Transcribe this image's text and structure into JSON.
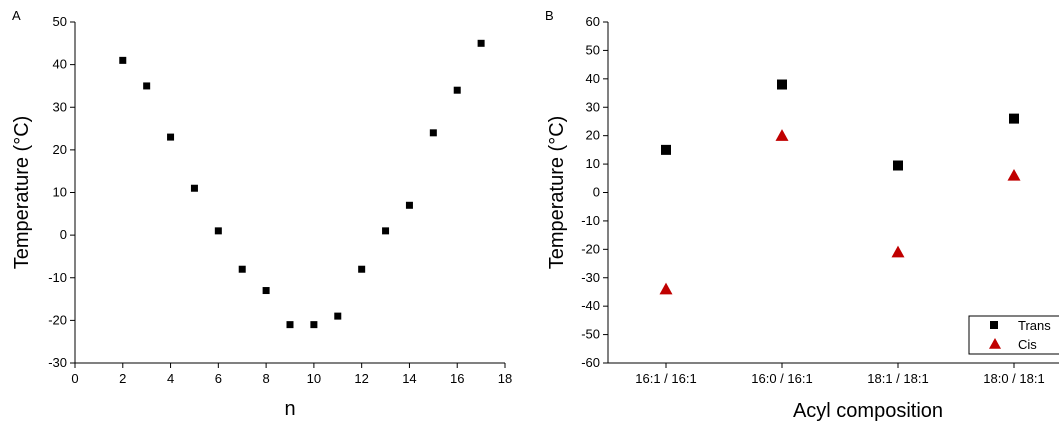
{
  "chart_data": [
    {
      "panel": "A",
      "type": "scatter",
      "xlabel": "n",
      "ylabel": "Temperature (°C)",
      "xlim": [
        0,
        18
      ],
      "ylim": [
        -30,
        50
      ],
      "xticks": [
        0,
        2,
        4,
        6,
        8,
        10,
        12,
        14,
        16,
        18
      ],
      "yticks": [
        -30,
        -20,
        -10,
        0,
        10,
        20,
        30,
        40,
        50
      ],
      "grid": false,
      "marker": "square",
      "color": "#000000",
      "x": [
        2,
        3,
        4,
        5,
        6,
        7,
        8,
        9,
        10,
        11,
        12,
        13,
        14,
        15,
        16,
        17
      ],
      "y": [
        41,
        35,
        23,
        11,
        1,
        -8,
        -13,
        -21,
        -21,
        -19,
        -8,
        1,
        7,
        24,
        34,
        45
      ]
    },
    {
      "panel": "B",
      "type": "scatter",
      "xlabel": "Acyl composition",
      "ylabel": "Temperature (°C)",
      "categories": [
        "16:1 / 16:1",
        "16:0 / 16:1",
        "18:1 / 18:1",
        "18:0 / 18:1"
      ],
      "ylim": [
        -60,
        60
      ],
      "yticks": [
        -60,
        -50,
        -40,
        -30,
        -20,
        -10,
        0,
        10,
        20,
        30,
        40,
        50,
        60
      ],
      "grid": false,
      "legend_position": "bottom-right",
      "series": [
        {
          "name": "Trans",
          "marker": "square",
          "color": "#000000",
          "values": [
            15,
            38,
            9.5,
            26
          ]
        },
        {
          "name": "Cis",
          "marker": "triangle",
          "color": "#c00000",
          "values": [
            -34,
            20,
            -21,
            6
          ]
        }
      ]
    }
  ]
}
